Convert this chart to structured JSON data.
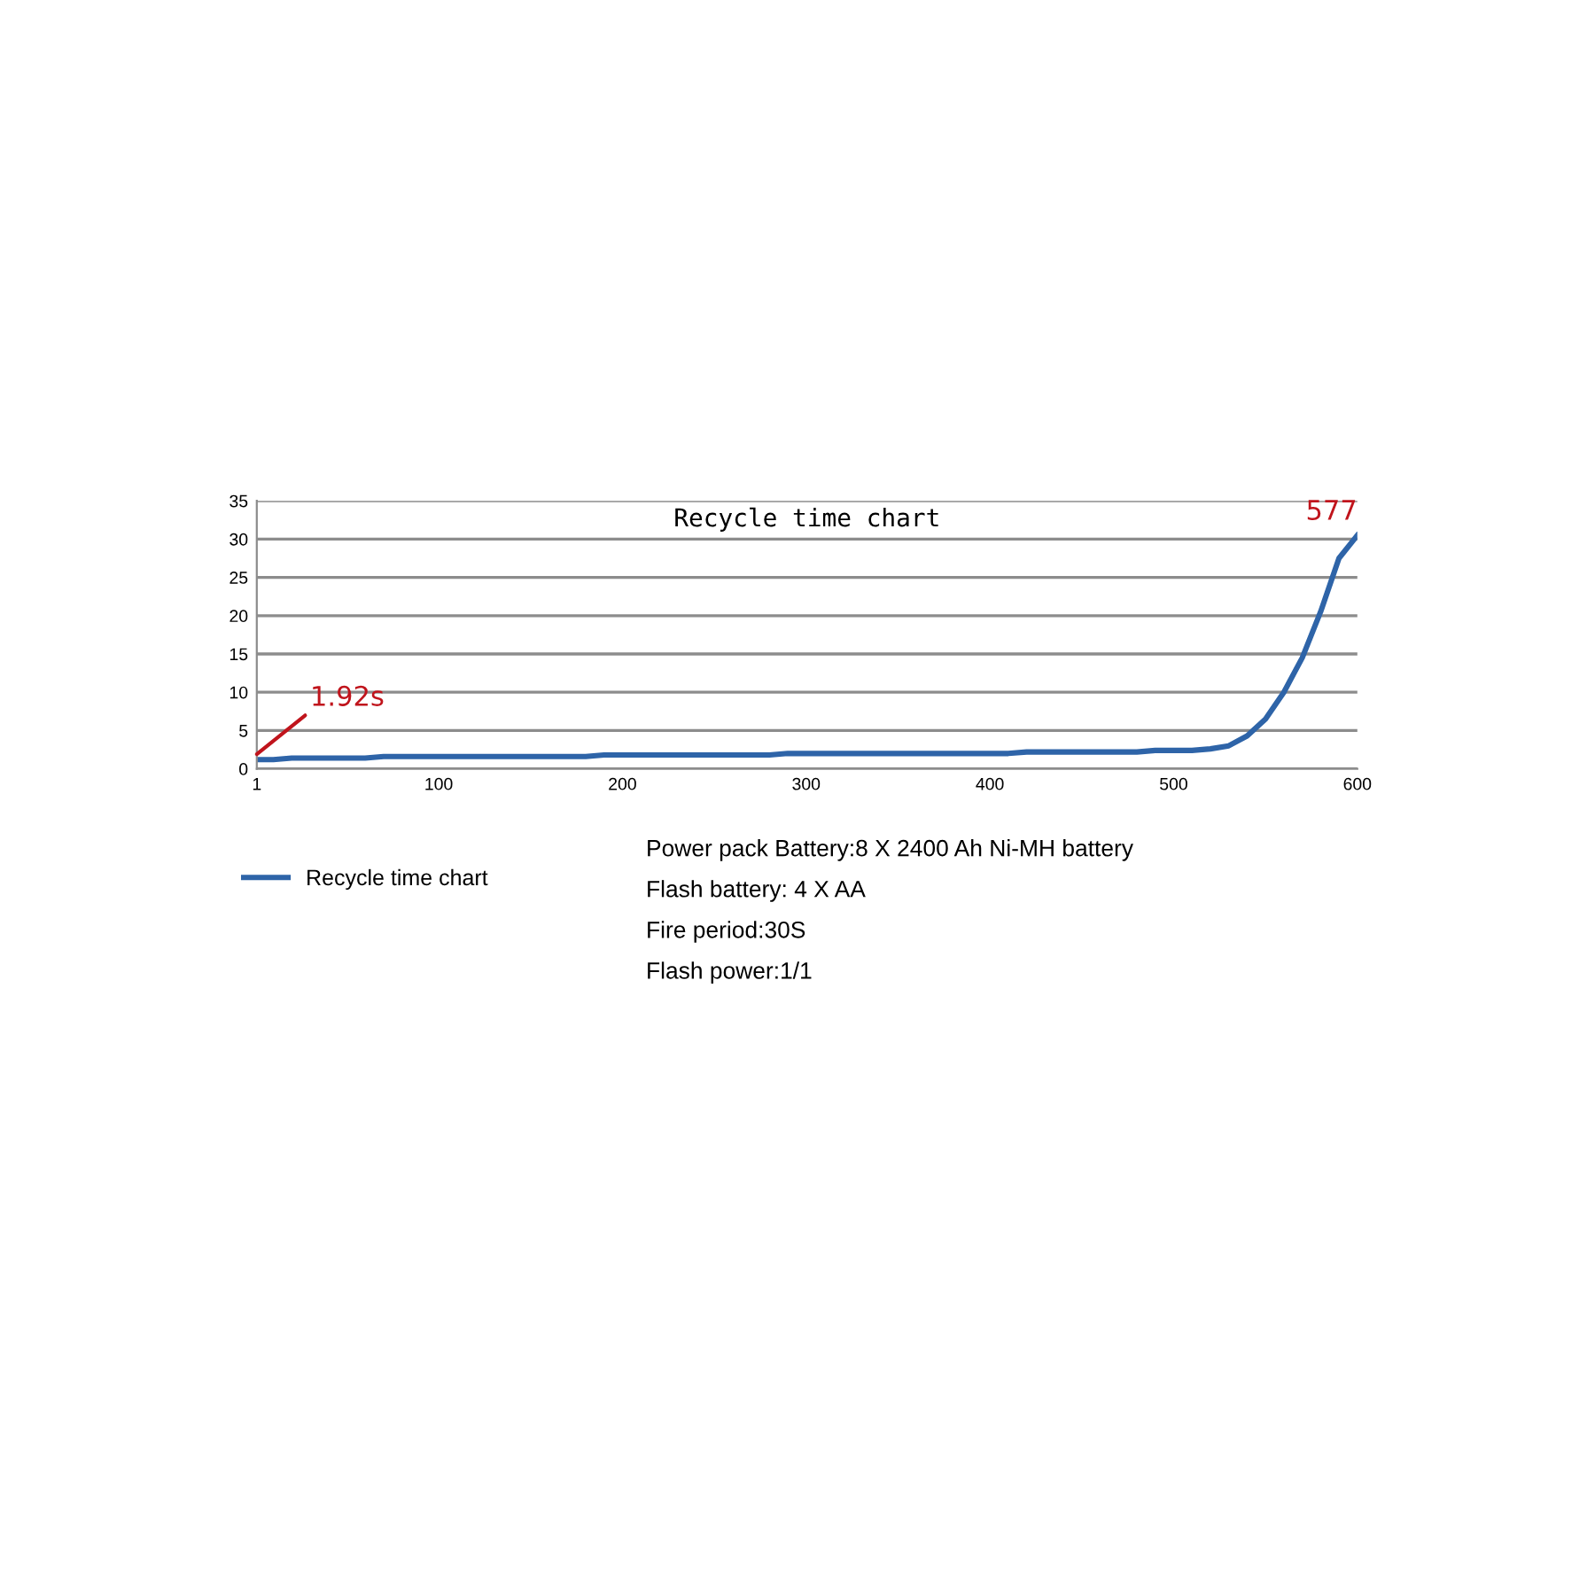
{
  "chart_data": {
    "type": "line",
    "title": "Recycle time chart",
    "x": [
      1,
      10,
      20,
      60,
      70,
      180,
      190,
      280,
      290,
      410,
      420,
      480,
      490,
      510,
      520,
      530,
      540,
      550,
      560,
      570,
      580,
      590,
      600
    ],
    "series": [
      {
        "name": "Recycle time chart",
        "color": "#2e64a8",
        "values": [
          1.2,
          1.2,
          1.4,
          1.4,
          1.6,
          1.6,
          1.8,
          1.8,
          2.0,
          2.0,
          2.2,
          2.2,
          2.4,
          2.4,
          2.6,
          3.0,
          4.3,
          6.5,
          10,
          14.5,
          20.5,
          27.5,
          30.5
        ]
      }
    ],
    "xlim": [
      1,
      600
    ],
    "xticks": [
      1,
      100,
      200,
      300,
      400,
      500,
      600
    ],
    "ylim": [
      0,
      35
    ],
    "yticks": [
      0,
      5,
      10,
      15,
      20,
      25,
      30,
      35
    ],
    "grid": "y",
    "legend": "bottom left",
    "marker": "none",
    "line_style": "solid",
    "annotations": [
      {
        "text": "1.92s",
        "x": 1,
        "y": 1.92
      },
      {
        "text": "577",
        "x": 600,
        "y": 30.5
      },
      "Power pack Battery:8 X 2400 Ah Ni-MH battery",
      "Flash battery: 4 X AA",
      "Fire period:30S",
      "Flash power:1/1"
    ]
  }
}
